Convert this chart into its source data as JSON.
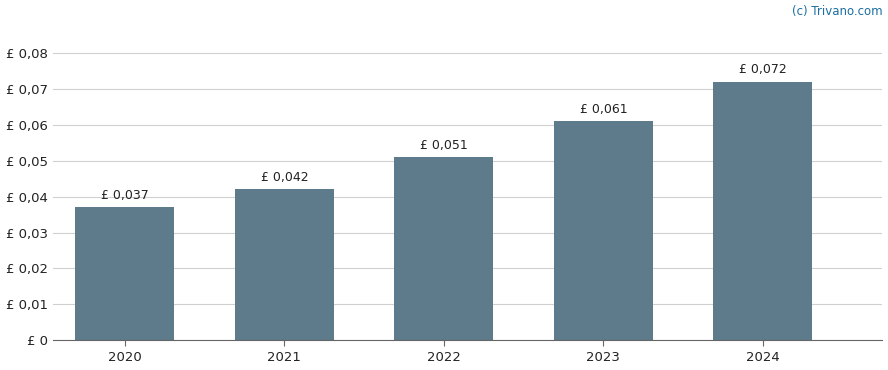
{
  "years": [
    2020,
    2021,
    2022,
    2023,
    2024
  ],
  "values": [
    0.037,
    0.042,
    0.051,
    0.061,
    0.072
  ],
  "labels": [
    "£ 0,037",
    "£ 0,042",
    "£ 0,051",
    "£ 0,061",
    "£ 0,072"
  ],
  "bar_color": "#5d7b8a",
  "background_color": "#ffffff",
  "ylim": [
    0,
    0.088
  ],
  "yticks": [
    0,
    0.01,
    0.02,
    0.03,
    0.04,
    0.05,
    0.06,
    0.07,
    0.08
  ],
  "ytick_labels": [
    "£ 0",
    "£ 0,01",
    "£ 0,02",
    "£ 0,03",
    "£ 0,04",
    "£ 0,05",
    "£ 0,06",
    "£ 0,07",
    "£ 0,08"
  ],
  "watermark": "(c) Trivano.com",
  "watermark_color": "#1a6ea0",
  "grid_color": "#d0d0d0",
  "bar_width": 0.62,
  "label_fontsize": 9,
  "tick_fontsize": 9.5,
  "figsize": [
    8.88,
    3.7
  ],
  "dpi": 100
}
